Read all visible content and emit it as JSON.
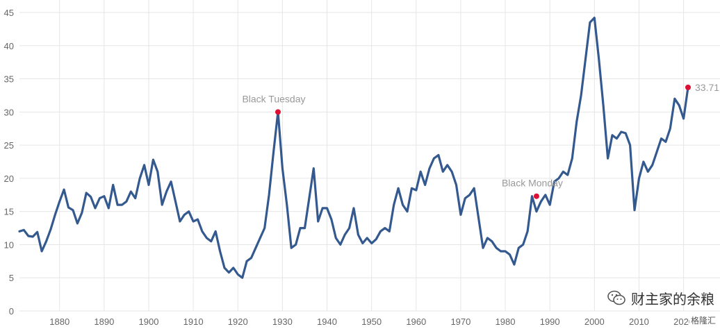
{
  "chart_data": {
    "type": "line",
    "title": "",
    "xlabel": "",
    "ylabel": "",
    "xlim": [
      1871,
      2021
    ],
    "ylim": [
      0,
      45
    ],
    "grid": true,
    "x_ticks": [
      "1880",
      "1890",
      "1900",
      "1910",
      "1920",
      "1930",
      "1940",
      "1950",
      "1960",
      "1970",
      "1980",
      "1990",
      "2000",
      "2010",
      "2020"
    ],
    "y_ticks": [
      "0",
      "5",
      "10",
      "15",
      "20",
      "25",
      "30",
      "35",
      "40",
      "45"
    ],
    "colors": {
      "line": "#34598f",
      "marker": "#dd1133",
      "grid": "#e6e6e6"
    },
    "series": [
      {
        "x": [
          1871,
          1872,
          1873,
          1874,
          1875,
          1876,
          1877,
          1878,
          1879,
          1880,
          1881,
          1882,
          1883,
          1884,
          1885,
          1886,
          1887,
          1888,
          1889,
          1890,
          1891,
          1892,
          1893,
          1894,
          1895,
          1896,
          1897,
          1898,
          1899,
          1900,
          1901,
          1902,
          1903,
          1904,
          1905,
          1906,
          1907,
          1908,
          1909,
          1910,
          1911,
          1912,
          1913,
          1914,
          1915,
          1916,
          1917,
          1918,
          1919,
          1920,
          1921,
          1922,
          1923,
          1924,
          1925,
          1926,
          1927,
          1928,
          1929,
          1930,
          1931,
          1932,
          1933,
          1934,
          1935,
          1936,
          1937,
          1938,
          1939,
          1940,
          1941,
          1942,
          1943,
          1944,
          1945,
          1946,
          1947,
          1948,
          1949,
          1950,
          1951,
          1952,
          1953,
          1954,
          1955,
          1956,
          1957,
          1958,
          1959,
          1960,
          1961,
          1962,
          1963,
          1964,
          1965,
          1966,
          1967,
          1968,
          1969,
          1970,
          1971,
          1972,
          1973,
          1974,
          1975,
          1976,
          1977,
          1978,
          1979,
          1980,
          1981,
          1982,
          1983,
          1984,
          1985,
          1986,
          1987,
          1988,
          1989,
          1990,
          1991,
          1992,
          1993,
          1994,
          1995,
          1996,
          1997,
          1998,
          1999,
          2000,
          2001,
          2002,
          2003,
          2004,
          2005,
          2006,
          2007,
          2008,
          2009,
          2010,
          2011,
          2012,
          2013,
          2014,
          2015,
          2016,
          2017,
          2018,
          2019,
          2020,
          2021
        ],
        "y": [
          12.0,
          12.2,
          11.3,
          11.2,
          11.9,
          9.0,
          10.5,
          12.3,
          14.5,
          16.5,
          18.3,
          15.6,
          15.2,
          13.2,
          14.8,
          17.8,
          17.2,
          15.5,
          17.0,
          17.3,
          15.5,
          19.0,
          16.0,
          16.0,
          16.5,
          18.0,
          17.0,
          20.0,
          22.0,
          19.0,
          22.8,
          21.0,
          16.0,
          18.0,
          19.5,
          16.5,
          13.5,
          14.5,
          15.0,
          13.5,
          13.8,
          12.0,
          11.0,
          10.5,
          12.0,
          9.0,
          6.5,
          5.8,
          6.5,
          5.5,
          5.0,
          7.5,
          8.0,
          9.5,
          11.0,
          12.5,
          17.5,
          24.0,
          30.0,
          21.5,
          16.0,
          9.5,
          10.0,
          12.5,
          12.5,
          17.0,
          21.5,
          13.5,
          15.5,
          15.5,
          13.8,
          11.0,
          10.0,
          11.5,
          12.5,
          15.5,
          11.5,
          10.2,
          11.0,
          10.2,
          10.8,
          12.0,
          12.5,
          12.0,
          16.0,
          18.5,
          16.0,
          15.0,
          18.5,
          18.2,
          21.0,
          19.0,
          21.5,
          23.0,
          23.5,
          21.0,
          22.0,
          21.0,
          19.0,
          14.5,
          17.0,
          17.5,
          18.5,
          14.0,
          9.5,
          11.0,
          10.5,
          9.5,
          9.0,
          9.0,
          8.5,
          7.0,
          9.5,
          10.0,
          12.0,
          17.3,
          15.0,
          16.5,
          17.5,
          16.0,
          19.5,
          20.0,
          21.0,
          20.5,
          23.0,
          28.5,
          32.5,
          38.0,
          43.5,
          44.2,
          38.0,
          31.0,
          23.0,
          26.5,
          26.0,
          27.0,
          26.8,
          25.0,
          15.2,
          20.0,
          22.5,
          21.0,
          22.0,
          24.0,
          26.0,
          25.5,
          27.5,
          32.0,
          31.0,
          29.0,
          33.71
        ]
      }
    ],
    "annotations": [
      {
        "x": 1929,
        "y": 30.0,
        "label": "Black Tuesday"
      },
      {
        "x": 1987,
        "y": 17.3,
        "label": "Black Monday"
      },
      {
        "x": 2021,
        "y": 33.71,
        "label": "33.71"
      }
    ]
  },
  "watermark": {
    "text": "财主家的余粮",
    "icon": "wechat-icon"
  },
  "brand": {
    "text": "格隆汇"
  }
}
